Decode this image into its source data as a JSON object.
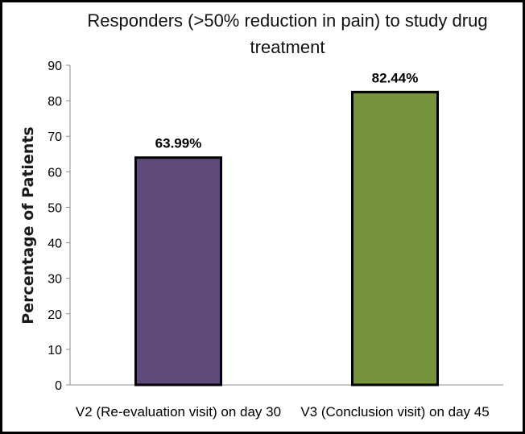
{
  "chart_data": {
    "type": "bar",
    "title_lines": [
      "Responders (>50% reduction in pain) to study drug",
      "treatment"
    ],
    "ylabel": "Percentage of Patients",
    "xlabel": "",
    "categories": [
      "V2 (Re-evaluation visit) on day 30",
      "V3 (Conclusion visit) on day 45"
    ],
    "values": [
      63.99,
      82.44
    ],
    "data_labels": [
      "63.99%",
      "82.44%"
    ],
    "bar_colors": [
      "#604a7b",
      "#77933c"
    ],
    "ylim": [
      0,
      90
    ],
    "yticks": [
      "0",
      "10",
      "20",
      "30",
      "40",
      "50",
      "60",
      "70",
      "80",
      "90"
    ],
    "grid": false,
    "legend": "none"
  }
}
